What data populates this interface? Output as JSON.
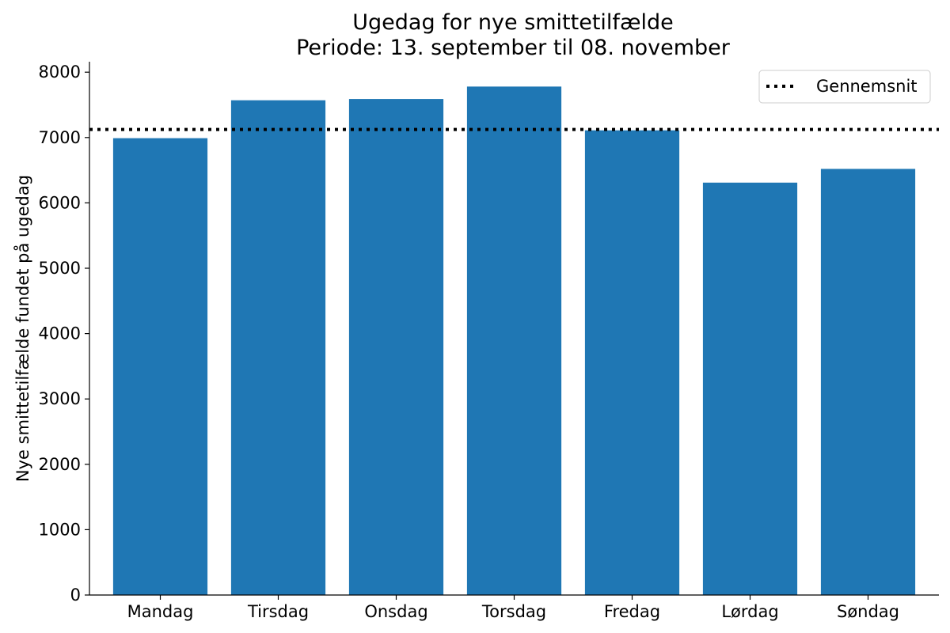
{
  "chart_data": {
    "type": "bar",
    "title": "Ugedag for nye smittetilfælde",
    "subtitle": "Periode: 13. september til 08. november",
    "xlabel": "",
    "ylabel": "Nye smittetilfælde fundet på ugedag",
    "categories": [
      "Mandag",
      "Tirsdag",
      "Onsdag",
      "Torsdag",
      "Fredag",
      "Lørdag",
      "Søndag"
    ],
    "values": [
      6990,
      7570,
      7590,
      7780,
      7110,
      6310,
      6520
    ],
    "ylim": [
      0,
      8160
    ],
    "yticks": [
      0,
      1000,
      2000,
      3000,
      4000,
      5000,
      6000,
      7000,
      8000
    ],
    "ytick_labels": [
      "0",
      "1000",
      "2000",
      "3000",
      "4000",
      "5000",
      "6000",
      "7000",
      "8000"
    ],
    "reference_line": {
      "name": "Gennemsnit",
      "value": 7124,
      "style": "dotted",
      "color": "#000000"
    },
    "bar_color": "#1f77b4",
    "grid": false,
    "legend": {
      "placement": "top-right",
      "entries": [
        "Gennemsnit"
      ]
    }
  }
}
